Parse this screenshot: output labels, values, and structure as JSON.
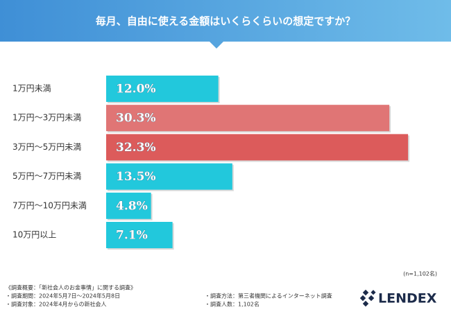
{
  "chart_data": {
    "type": "bar",
    "orientation": "horizontal",
    "title": "毎月、自由に使える金額はいくらくらいの想定ですか？",
    "categories": [
      "1万円未満",
      "1万円～3万円未満",
      "3万円～5万円未満",
      "5万円～7万円未満",
      "7万円～10万円未満",
      "10万円以上"
    ],
    "values": [
      12.0,
      30.3,
      32.3,
      13.5,
      4.8,
      7.1
    ],
    "value_labels": [
      "12.0%",
      "30.3%",
      "32.3%",
      "13.5%",
      "4.8%",
      "7.1%"
    ],
    "colors": [
      "#22c8dc",
      "#e07575",
      "#dc5b5b",
      "#22c8dc",
      "#22c8dc",
      "#22c8dc"
    ],
    "annotation": "(n=1,102名)",
    "notes": {
      "heading": "《調査概要：「新社会人のお金事情」に関する調査》",
      "period": "・調査期間：2024年5月7日～2024年5月8日",
      "target": "・調査対象：2024年4月からの新社会人",
      "method": "・調査方法：第三者機関によるインターネット調査",
      "count": "・調査人数：1,102名"
    },
    "brand": "LENDEX"
  }
}
